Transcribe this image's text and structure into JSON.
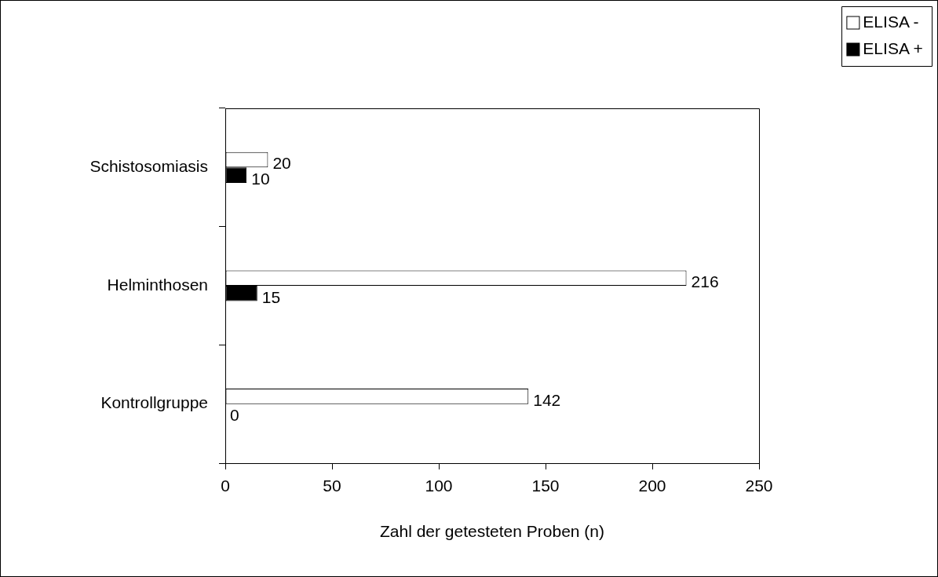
{
  "chart_data": {
    "type": "bar",
    "orientation": "horizontal",
    "xlabel": "Zahl der getesteten Proben (n)",
    "categories": [
      "Schistosomiasis",
      "Helminthosen",
      "Kontrollgruppe"
    ],
    "series": [
      {
        "name": "ELISA -",
        "color": "#ffffff",
        "values": [
          20,
          216,
          142
        ]
      },
      {
        "name": "ELISA +",
        "color": "#000000",
        "values": [
          10,
          15,
          0
        ]
      }
    ],
    "xlim": [
      0,
      250
    ],
    "xticks": [
      0,
      50,
      100,
      150,
      200,
      250
    ],
    "grid": false,
    "legend": "top right",
    "data_labels": true
  }
}
